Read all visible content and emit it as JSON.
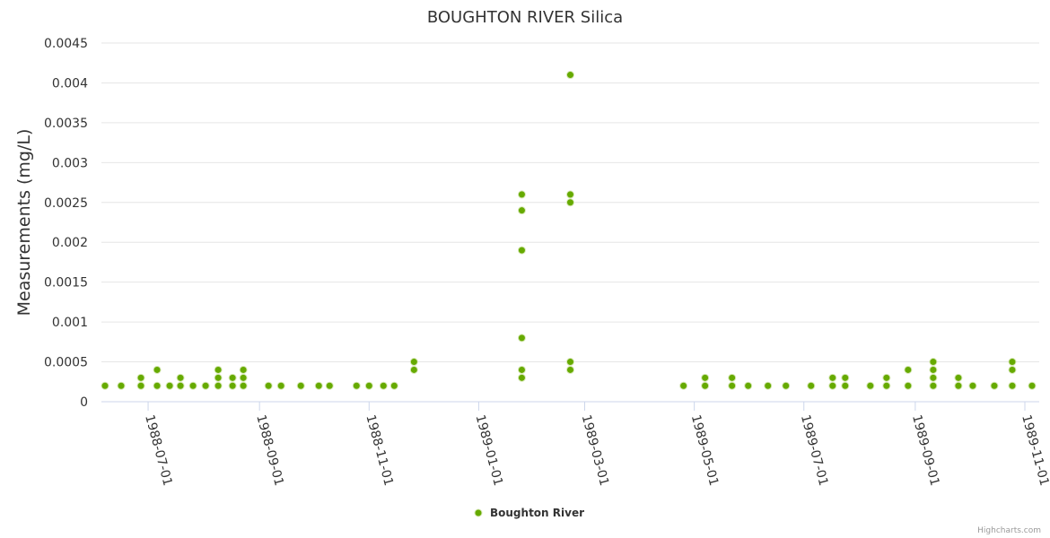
{
  "chart_data": {
    "type": "scatter",
    "title": "BOUGHTON RIVER Silica",
    "ylabel": "Measurements (mg/L)",
    "xlabel": "",
    "ylim": [
      0,
      0.0045
    ],
    "yticks": [
      "0",
      "0.0005",
      "0.001",
      "0.0015",
      "0.002",
      "0.0025",
      "0.003",
      "0.0035",
      "0.004",
      "0.0045"
    ],
    "xlim": [
      "1988-06-05",
      "1989-11-09"
    ],
    "xticks": [
      "1988-07-01",
      "1988-09-01",
      "1988-11-01",
      "1989-01-01",
      "1989-03-01",
      "1989-05-01",
      "1989-07-01",
      "1989-09-01",
      "1989-11-01"
    ],
    "series": [
      {
        "name": "Boughton River",
        "color": "#66aa00",
        "points": [
          [
            "1988-06-07",
            0.0002
          ],
          [
            "1988-06-16",
            0.0002
          ],
          [
            "1988-06-27",
            0.0003
          ],
          [
            "1988-06-27",
            0.0002
          ],
          [
            "1988-07-06",
            0.0004
          ],
          [
            "1988-07-06",
            0.0002
          ],
          [
            "1988-07-13",
            0.0002
          ],
          [
            "1988-07-19",
            0.0003
          ],
          [
            "1988-07-19",
            0.0002
          ],
          [
            "1988-07-26",
            0.0002
          ],
          [
            "1988-08-02",
            0.0002
          ],
          [
            "1988-08-09",
            0.0004
          ],
          [
            "1988-08-09",
            0.0003
          ],
          [
            "1988-08-09",
            0.0002
          ],
          [
            "1988-08-17",
            0.0003
          ],
          [
            "1988-08-17",
            0.0002
          ],
          [
            "1988-08-23",
            0.0004
          ],
          [
            "1988-08-23",
            0.0003
          ],
          [
            "1988-08-23",
            0.0002
          ],
          [
            "1988-09-06",
            0.0002
          ],
          [
            "1988-09-13",
            0.0002
          ],
          [
            "1988-09-24",
            0.0002
          ],
          [
            "1988-10-04",
            0.0002
          ],
          [
            "1988-10-10",
            0.0002
          ],
          [
            "1988-10-25",
            0.0002
          ],
          [
            "1988-11-01",
            0.0002
          ],
          [
            "1988-11-09",
            0.0002
          ],
          [
            "1988-11-15",
            0.0002
          ],
          [
            "1988-11-26",
            0.0005
          ],
          [
            "1988-11-26",
            0.0004
          ],
          [
            "1989-01-25",
            0.0026
          ],
          [
            "1989-01-25",
            0.0024
          ],
          [
            "1989-01-25",
            0.0019
          ],
          [
            "1989-01-25",
            0.0008
          ],
          [
            "1989-01-25",
            0.0004
          ],
          [
            "1989-01-25",
            0.0003
          ],
          [
            "1989-02-21",
            0.0041
          ],
          [
            "1989-02-21",
            0.0026
          ],
          [
            "1989-02-21",
            0.0025
          ],
          [
            "1989-02-21",
            0.0005
          ],
          [
            "1989-02-21",
            0.0004
          ],
          [
            "1989-04-25",
            0.0002
          ],
          [
            "1989-05-07",
            0.0003
          ],
          [
            "1989-05-07",
            0.0002
          ],
          [
            "1989-05-22",
            0.0003
          ],
          [
            "1989-05-22",
            0.0002
          ],
          [
            "1989-05-31",
            0.0002
          ],
          [
            "1989-06-11",
            0.0002
          ],
          [
            "1989-06-21",
            0.0002
          ],
          [
            "1989-07-05",
            0.0002
          ],
          [
            "1989-07-17",
            0.0003
          ],
          [
            "1989-07-17",
            0.0002
          ],
          [
            "1989-07-24",
            0.0003
          ],
          [
            "1989-07-24",
            0.0002
          ],
          [
            "1989-08-07",
            0.0002
          ],
          [
            "1989-08-16",
            0.0003
          ],
          [
            "1989-08-16",
            0.0002
          ],
          [
            "1989-08-28",
            0.0004
          ],
          [
            "1989-08-28",
            0.0002
          ],
          [
            "1989-09-11",
            0.0005
          ],
          [
            "1989-09-11",
            0.0004
          ],
          [
            "1989-09-11",
            0.0003
          ],
          [
            "1989-09-11",
            0.0002
          ],
          [
            "1989-09-25",
            0.0003
          ],
          [
            "1989-09-25",
            0.0002
          ],
          [
            "1989-10-03",
            0.0002
          ],
          [
            "1989-10-15",
            0.0002
          ],
          [
            "1989-10-25",
            0.0005
          ],
          [
            "1989-10-25",
            0.0004
          ],
          [
            "1989-10-25",
            0.0002
          ],
          [
            "1989-11-05",
            0.0002
          ]
        ]
      }
    ],
    "legend": {
      "position": "bottom-center",
      "label": "Boughton River"
    },
    "grid": true
  },
  "credits": "Highcharts.com"
}
